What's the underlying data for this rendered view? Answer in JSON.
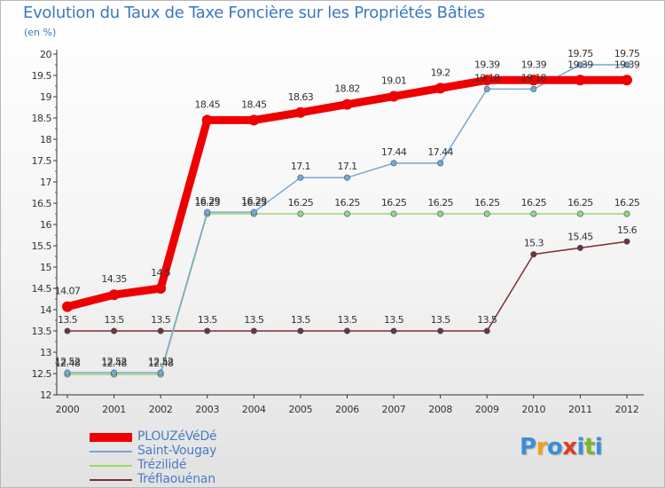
{
  "chart_data": {
    "type": "line",
    "title": "Evolution du Taux de Taxe Foncière sur les Propriétés Bâties",
    "unit_label": "(en %)",
    "categories": [
      "2000",
      "2001",
      "2002",
      "2003",
      "2004",
      "2005",
      "2006",
      "2007",
      "2008",
      "2009",
      "2010",
      "2011",
      "2012"
    ],
    "ylim": [
      12,
      20
    ],
    "ytick_step": 0.5,
    "yticks": [
      "12",
      "12.5",
      "13",
      "13.5",
      "14",
      "14.5",
      "15",
      "15.5",
      "16",
      "16.5",
      "17",
      "17.5",
      "18",
      "18.5",
      "19",
      "19.5",
      "20"
    ],
    "grid": false,
    "series": [
      {
        "name": "PLOUZéVéDé",
        "color": "#ee0000",
        "values": [
          14.07,
          14.35,
          14.5,
          18.45,
          18.45,
          18.63,
          18.82,
          19.01,
          19.2,
          19.39,
          19.39,
          19.39,
          19.39
        ],
        "labels": [
          "14.07",
          "14.35",
          "14.5",
          "18.45",
          "18.45",
          "18.63",
          "18.82",
          "19.01",
          "19.2",
          "19.39",
          "19.39",
          "19.39",
          "19.39"
        ]
      },
      {
        "name": "Saint-Vougay",
        "color": "#7aa6d0",
        "values": [
          12.52,
          12.52,
          12.52,
          16.29,
          16.29,
          17.1,
          17.1,
          17.44,
          17.44,
          19.18,
          19.18,
          19.75,
          19.75
        ],
        "labels": [
          "12.52",
          "12.52",
          "12.52",
          "16.29",
          "16.29",
          "17.1",
          "17.1",
          "17.44",
          "17.44",
          "19.18",
          "19.18",
          "19.75",
          "19.75"
        ]
      },
      {
        "name": "Trézilidé",
        "color": "#9fd66a",
        "values": [
          12.48,
          12.48,
          12.48,
          16.25,
          16.25,
          16.25,
          16.25,
          16.25,
          16.25,
          16.25,
          16.25,
          16.25,
          16.25
        ],
        "labels": [
          "12.48",
          "12.48",
          "12.48",
          "16.25",
          "16.25",
          "16.25",
          "16.25",
          "16.25",
          "16.25",
          "16.25",
          "16.25",
          "16.25",
          "16.25"
        ]
      },
      {
        "name": "Tréflaouénan",
        "color": "#7b2f2f",
        "values": [
          13.5,
          13.5,
          13.5,
          13.5,
          13.5,
          13.5,
          13.5,
          13.5,
          13.5,
          13.5,
          15.3,
          15.45,
          15.6
        ],
        "labels": [
          "13.5",
          "13.5",
          "13.5",
          "13.5",
          "13.5",
          "13.5",
          "13.5",
          "13.5",
          "13.5",
          "13.5",
          "15.3",
          "15.45",
          "15.6"
        ]
      }
    ]
  },
  "logo": {
    "letters": [
      "P",
      "r",
      "o",
      "x",
      "i",
      "t",
      "i"
    ],
    "colors": [
      "#3c8fd6",
      "#f0a020",
      "#3c8fd6",
      "#e23c1e",
      "#3c8fd6",
      "#7ab828",
      "#3c8fd6"
    ]
  }
}
